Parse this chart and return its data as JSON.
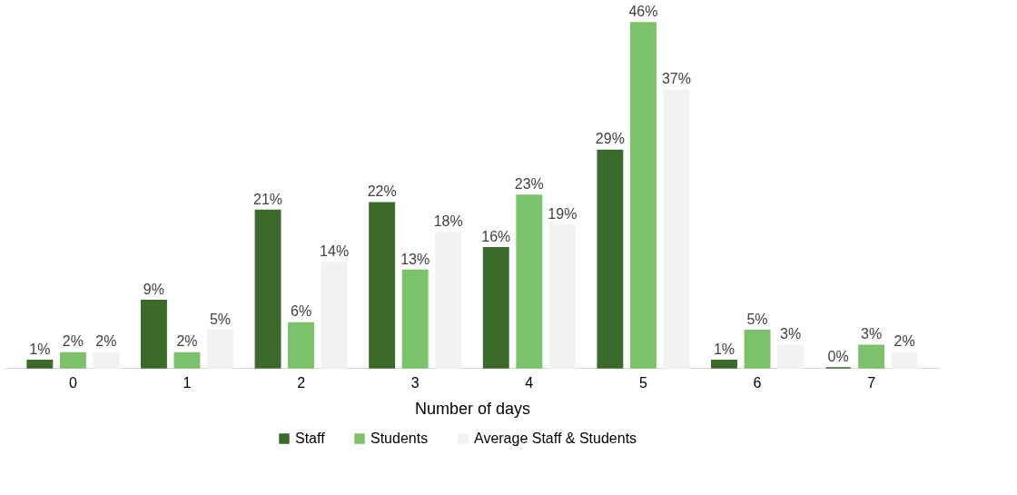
{
  "chart_data": {
    "type": "bar",
    "xlabel": "Number of days",
    "categories": [
      "0",
      "1",
      "2",
      "3",
      "4",
      "5",
      "6",
      "7"
    ],
    "series": [
      {
        "name": "Staff",
        "color": "#3a6b2a",
        "values": [
          1,
          9,
          21,
          22,
          16,
          29,
          1,
          0
        ],
        "value_labels": [
          "1%",
          "9%",
          "21%",
          "22%",
          "16%",
          "29%",
          "1%",
          "0%"
        ]
      },
      {
        "name": "Students",
        "color": "#7cc26a",
        "values": [
          2,
          2,
          6,
          13,
          23,
          46,
          5,
          3
        ],
        "value_labels": [
          "2%",
          "2%",
          "6%",
          "13%",
          "23%",
          "46%",
          "5%",
          "3%"
        ]
      },
      {
        "name": "Average Staff & Students",
        "color": "#f2f2f2",
        "values": [
          2,
          5,
          14,
          18,
          19,
          37,
          3,
          2
        ],
        "value_labels": [
          "2%",
          "5%",
          "14%",
          "18%",
          "19%",
          "37%",
          "3%",
          "2%"
        ]
      }
    ],
    "legend": "bottom",
    "grid": false
  }
}
